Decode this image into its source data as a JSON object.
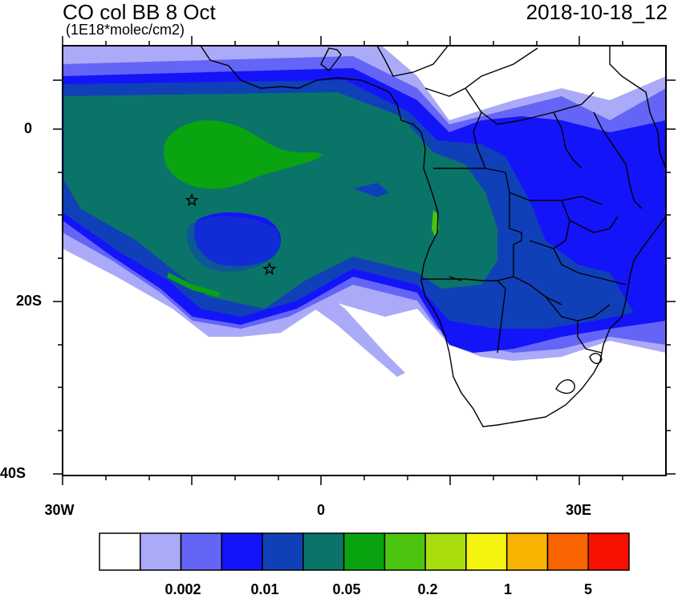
{
  "map": {
    "title": "CO col BB 8 Oct",
    "units": "(1E18*molec/cm2)",
    "datetime": "2018-10-18_12",
    "lon_range": [
      -30,
      40
    ],
    "lat_range": [
      -40,
      10
    ],
    "y_tick_labels": [
      "0",
      "20S",
      "40S"
    ],
    "x_tick_labels": [
      "30W",
      "0",
      "30E"
    ]
  },
  "colorbar": {
    "colors": [
      "#ffffff",
      "#aaaaf8",
      "#6464f6",
      "#1414f8",
      "#1040b8",
      "#0a7468",
      "#0aa410",
      "#4cc410",
      "#a8dc0c",
      "#f4f410",
      "#f8b400",
      "#f86400",
      "#f81000"
    ],
    "tick_labels": [
      "0.002",
      "0.01",
      "0.05",
      "0.2",
      "1",
      "5"
    ]
  },
  "markers": [
    {
      "name": "star-1",
      "lon": -15,
      "lat": -8
    },
    {
      "name": "star-2",
      "lon": -6,
      "lat": -16
    }
  ]
}
